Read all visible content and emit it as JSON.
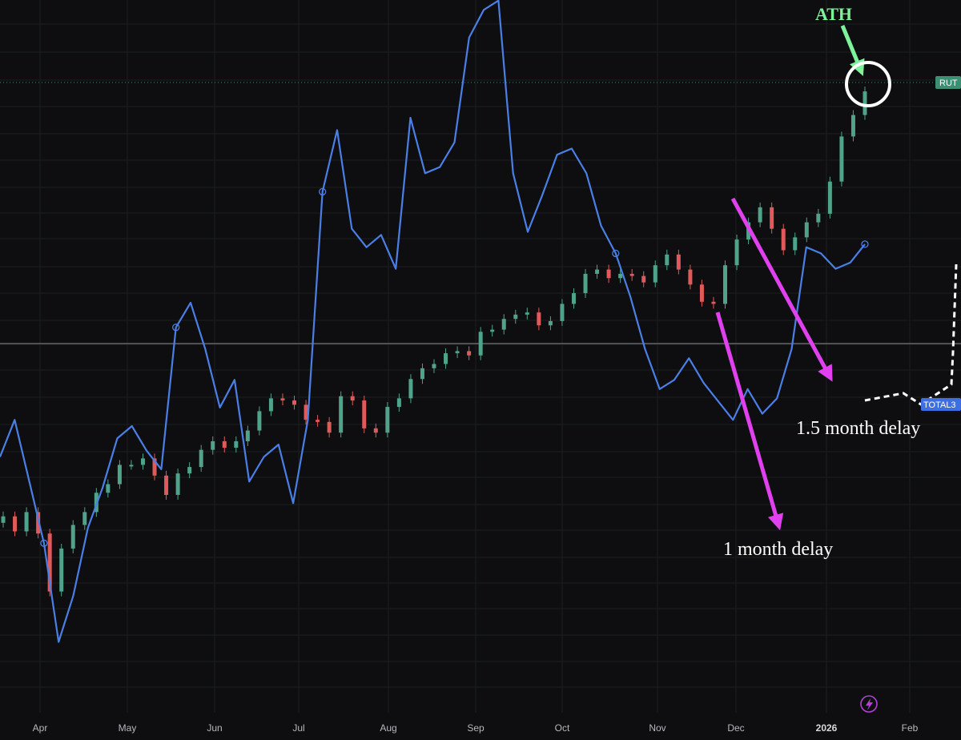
{
  "chart_data": {
    "type": "line",
    "x_axis": {
      "ticks": [
        "Apr",
        "May",
        "Jun",
        "Jul",
        "Aug",
        "Sep",
        "Oct",
        "Nov",
        "Dec",
        "2026",
        "Feb"
      ]
    },
    "series": [
      {
        "name": "RUT",
        "kind": "candlestick",
        "color_up": "#4fa38b",
        "color_down": "#e05a5a",
        "close": [
          0.43,
          0.36,
          0.45,
          0.35,
          0.08,
          0.28,
          0.39,
          0.45,
          0.54,
          0.58,
          0.67,
          0.67,
          0.7,
          0.62,
          0.53,
          0.63,
          0.66,
          0.74,
          0.78,
          0.75,
          0.78,
          0.83,
          0.92,
          0.98,
          0.97,
          0.95,
          0.88,
          0.87,
          0.82,
          0.99,
          0.97,
          0.84,
          0.82,
          0.94,
          0.98,
          1.07,
          1.12,
          1.14,
          1.19,
          1.2,
          1.18,
          1.29,
          1.3,
          1.35,
          1.37,
          1.38,
          1.32,
          1.34,
          1.42,
          1.47,
          1.56,
          1.58,
          1.54,
          1.56,
          1.55,
          1.52,
          1.6,
          1.65,
          1.58,
          1.51,
          1.43,
          1.42,
          1.6,
          1.72,
          1.8,
          1.87,
          1.77,
          1.67,
          1.73,
          1.8,
          1.84,
          1.99,
          2.2,
          2.3,
          2.41
        ],
        "last_label": "RUT",
        "label_color": "#3b8f72"
      },
      {
        "name": "TOTAL3",
        "kind": "line",
        "color": "#4a7fe6",
        "values": [
          0.7,
          0.82,
          0.62,
          0.42,
          0.1,
          0.25,
          0.47,
          0.6,
          0.76,
          0.8,
          0.72,
          0.66,
          1.12,
          1.2,
          1.05,
          0.86,
          0.95,
          0.62,
          0.7,
          0.74,
          0.55,
          0.82,
          1.56,
          1.76,
          1.44,
          1.38,
          1.42,
          1.31,
          1.8,
          1.62,
          1.64,
          1.72,
          2.06,
          2.15,
          2.18,
          1.62,
          1.43,
          1.55,
          1.68,
          1.7,
          1.62,
          1.45,
          1.36,
          1.22,
          1.05,
          0.92,
          0.95,
          1.02,
          0.94,
          0.88,
          0.82,
          0.92,
          0.84,
          0.89,
          1.05,
          1.38,
          1.36,
          1.31,
          1.33,
          1.39
        ],
        "last_label": "TOTAL3",
        "label_color": "#3d6fe0"
      }
    ],
    "annotations": [
      {
        "text": "ATH",
        "color": "#7df29b"
      },
      {
        "text": "1.5 month delay",
        "color": "#ffffff"
      },
      {
        "text": "1 month delay",
        "color": "#ffffff"
      }
    ],
    "reference_lines": {
      "horizontal_line": true,
      "dotted_price_line": true
    },
    "grid": true
  },
  "colors": {
    "background": "#0e0e10",
    "grid": "#1c1d21",
    "arrow": "#e040ee",
    "ath_arrow": "#7df29b",
    "circle": "#ffffff",
    "projection": "#ffffff"
  },
  "icons": {
    "bottom": "lightning-icon"
  }
}
